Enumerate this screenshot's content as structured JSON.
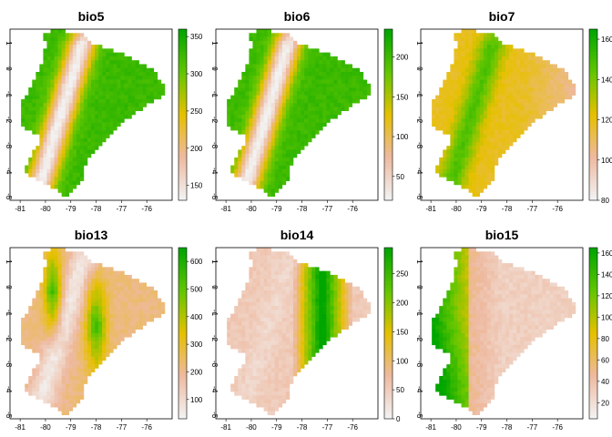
{
  "colors": {
    "ramp": [
      "#f2f2f2",
      "#eeb99f",
      "#e6c000",
      "#63c600",
      "#00a600"
    ]
  },
  "x_ticks": [
    "-81",
    "-80",
    "-79",
    "-78",
    "-77",
    "-76"
  ],
  "y_ticks": [
    "1",
    "0",
    "-1",
    "-2",
    "-3",
    "-4",
    "-5"
  ],
  "panels": [
    {
      "title": "bio5",
      "legend_min": 130,
      "legend_max": 360,
      "legend_ticks": [
        "350",
        "300",
        "250",
        "200",
        "150"
      ],
      "field": "elev_inverse"
    },
    {
      "title": "bio6",
      "legend_min": 20,
      "legend_max": 235,
      "legend_ticks": [
        "200",
        "150",
        "100",
        "50"
      ],
      "field": "elev_inverse"
    },
    {
      "title": "bio7",
      "legend_min": 80,
      "legend_max": 165,
      "legend_ticks": [
        "160",
        "140",
        "120",
        "100",
        "80"
      ],
      "field": "range"
    },
    {
      "title": "bio13",
      "legend_min": 30,
      "legend_max": 650,
      "legend_ticks": [
        "600",
        "500",
        "400",
        "300",
        "200",
        "100"
      ],
      "field": "wet"
    },
    {
      "title": "bio14",
      "legend_min": 0,
      "legend_max": 295,
      "legend_ticks": [
        "250",
        "200",
        "150",
        "100",
        "50",
        "0"
      ],
      "field": "dry"
    },
    {
      "title": "bio15",
      "legend_min": 5,
      "legend_max": 165,
      "legend_ticks": [
        "160",
        "140",
        "120",
        "100",
        "80",
        "60",
        "40",
        "20"
      ],
      "field": "season"
    }
  ]
}
